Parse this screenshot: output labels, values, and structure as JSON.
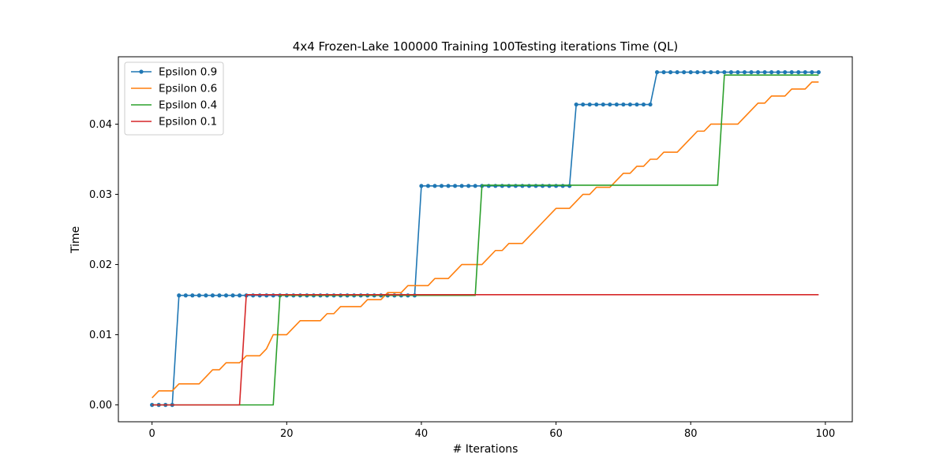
{
  "chart_data": {
    "type": "line",
    "title": "4x4 Frozen-Lake 100000 Training 100Testing iterations  Time (QL)",
    "xlabel": "# Iterations",
    "ylabel": "Time",
    "xlim": [
      -5,
      104
    ],
    "ylim": [
      -0.0024,
      0.0496
    ],
    "xticks": [
      0,
      20,
      40,
      60,
      80,
      100
    ],
    "yticks": [
      0.0,
      0.01,
      0.02,
      0.03,
      0.04
    ],
    "ytick_labels": [
      "0.00",
      "0.01",
      "0.02",
      "0.03",
      "0.04"
    ],
    "legend_position": "upper-left",
    "grid": false,
    "series": [
      {
        "name": "Epsilon 0.9",
        "color": "#1f77b4",
        "marker": "circle",
        "segments": [
          [
            0,
            3,
            0.0
          ],
          [
            4,
            39,
            0.0156
          ],
          [
            40,
            62,
            0.0312
          ],
          [
            63,
            74,
            0.0428
          ],
          [
            75,
            99,
            0.0474
          ]
        ]
      },
      {
        "name": "Epsilon 0.6",
        "color": "#ff7f0e",
        "marker": "none",
        "segments": [
          [
            0,
            0,
            0.001
          ],
          [
            1,
            3,
            0.002
          ],
          [
            4,
            7,
            0.003
          ],
          [
            8,
            8,
            0.004
          ],
          [
            9,
            10,
            0.005
          ],
          [
            11,
            13,
            0.006
          ],
          [
            14,
            16,
            0.007
          ],
          [
            17,
            17,
            0.008
          ],
          [
            18,
            20,
            0.01
          ],
          [
            21,
            21,
            0.011
          ],
          [
            22,
            25,
            0.012
          ],
          [
            26,
            27,
            0.013
          ],
          [
            28,
            31,
            0.014
          ],
          [
            32,
            34,
            0.015
          ],
          [
            35,
            37,
            0.016
          ],
          [
            38,
            41,
            0.017
          ],
          [
            42,
            44,
            0.018
          ],
          [
            45,
            45,
            0.019
          ],
          [
            46,
            49,
            0.02
          ],
          [
            50,
            50,
            0.021
          ],
          [
            51,
            52,
            0.022
          ],
          [
            53,
            55,
            0.023
          ],
          [
            56,
            56,
            0.024
          ],
          [
            57,
            57,
            0.025
          ],
          [
            58,
            58,
            0.026
          ],
          [
            59,
            59,
            0.027
          ],
          [
            60,
            62,
            0.028
          ],
          [
            63,
            63,
            0.029
          ],
          [
            64,
            65,
            0.03
          ],
          [
            66,
            68,
            0.031
          ],
          [
            69,
            69,
            0.032
          ],
          [
            70,
            71,
            0.033
          ],
          [
            72,
            73,
            0.034
          ],
          [
            74,
            75,
            0.035
          ],
          [
            76,
            78,
            0.036
          ],
          [
            79,
            79,
            0.037
          ],
          [
            80,
            80,
            0.038
          ],
          [
            81,
            82,
            0.039
          ],
          [
            83,
            87,
            0.04
          ],
          [
            88,
            88,
            0.041
          ],
          [
            89,
            89,
            0.042
          ],
          [
            90,
            91,
            0.043
          ],
          [
            92,
            94,
            0.044
          ],
          [
            95,
            97,
            0.045
          ],
          [
            98,
            99,
            0.046
          ]
        ]
      },
      {
        "name": "Epsilon 0.4",
        "color": "#2ca02c",
        "marker": "none",
        "segments": [
          [
            0,
            18,
            0.0
          ],
          [
            19,
            48,
            0.0156
          ],
          [
            49,
            84,
            0.0313
          ],
          [
            85,
            99,
            0.047
          ]
        ]
      },
      {
        "name": "Epsilon 0.1",
        "color": "#d62728",
        "marker": "none",
        "segments": [
          [
            0,
            13,
            0.0
          ],
          [
            14,
            99,
            0.0157
          ]
        ]
      }
    ]
  }
}
